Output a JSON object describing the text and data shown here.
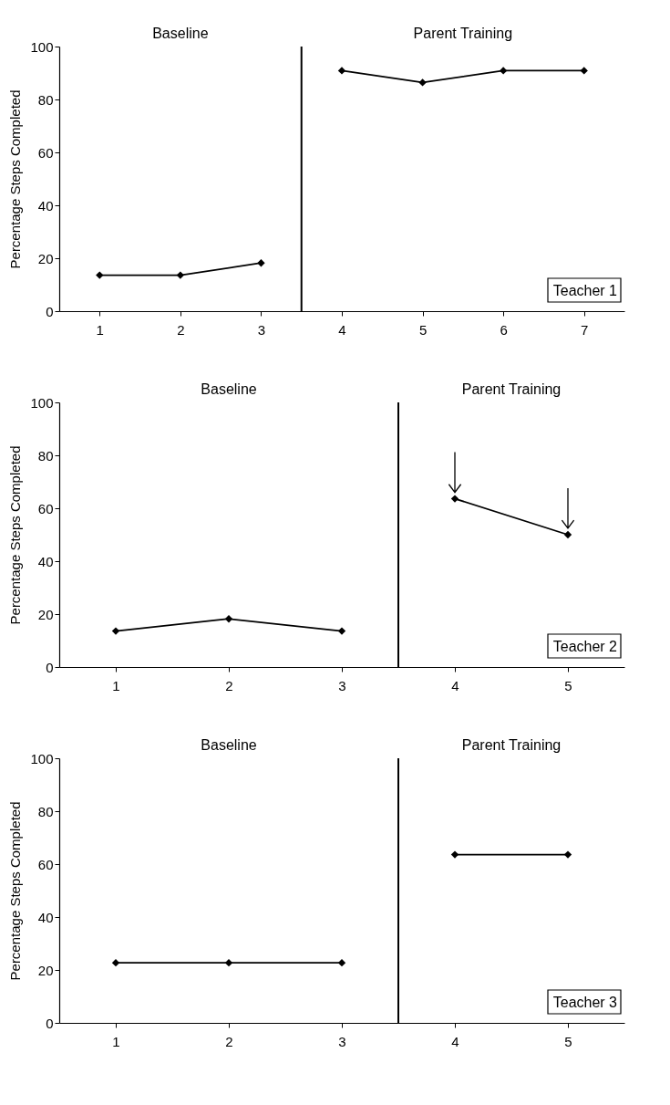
{
  "chart_data": [
    {
      "type": "line",
      "ylabel": "Percentage Steps Completed",
      "xlim": [
        0.5,
        7.5
      ],
      "xticks": [
        1,
        2,
        3,
        4,
        5,
        6,
        7
      ],
      "ylim": [
        0,
        100
      ],
      "yticks": [
        0,
        20,
        40,
        60,
        80,
        100
      ],
      "marker": "diamond",
      "series": [
        {
          "color": "#000000",
          "x": [
            1,
            2,
            3
          ],
          "values": [
            13.6,
            13.6,
            18.2
          ]
        },
        {
          "color": "#000000",
          "x": [
            4,
            5,
            6,
            7
          ],
          "values": [
            90.9,
            86.4,
            90.9,
            90.9
          ]
        }
      ],
      "ref_lines": [
        {
          "axis": "x",
          "value": 3.5
        }
      ],
      "annotations": [
        "Baseline",
        "Parent Training",
        "Teacher 1"
      ]
    },
    {
      "type": "line",
      "ylabel": "Percentage Steps Completed",
      "xlim": [
        0.5,
        5.5
      ],
      "xticks": [
        1,
        2,
        3,
        4,
        5
      ],
      "ylim": [
        0,
        100
      ],
      "yticks": [
        0,
        20,
        40,
        60,
        80,
        100
      ],
      "marker": "diamond",
      "series": [
        {
          "color": "#000000",
          "x": [
            1,
            2,
            3
          ],
          "values": [
            13.6,
            18.2,
            13.6
          ]
        },
        {
          "color": "#000000",
          "x": [
            4,
            5
          ],
          "values": [
            63.6,
            50
          ]
        }
      ],
      "ref_lines": [
        {
          "axis": "x",
          "value": 3.5
        }
      ],
      "annotations": [
        "Baseline",
        "Parent Training",
        "Teacher 2"
      ]
    },
    {
      "type": "line",
      "ylabel": "Percentage Steps Completed",
      "xlim": [
        0.5,
        5.5
      ],
      "xticks": [
        1,
        2,
        3,
        4,
        5
      ],
      "ylim": [
        0,
        100
      ],
      "yticks": [
        0,
        20,
        40,
        60,
        80,
        100
      ],
      "marker": "diamond",
      "series": [
        {
          "color": "#000000",
          "x": [
            1,
            2,
            3
          ],
          "values": [
            22.7,
            22.7,
            22.7
          ]
        },
        {
          "color": "#000000",
          "x": [
            4,
            5
          ],
          "values": [
            63.6,
            63.6
          ]
        }
      ],
      "ref_lines": [
        {
          "axis": "x",
          "value": 3.5
        }
      ],
      "annotations": [
        "Baseline",
        "Parent Training",
        "Teacher 3"
      ]
    }
  ]
}
